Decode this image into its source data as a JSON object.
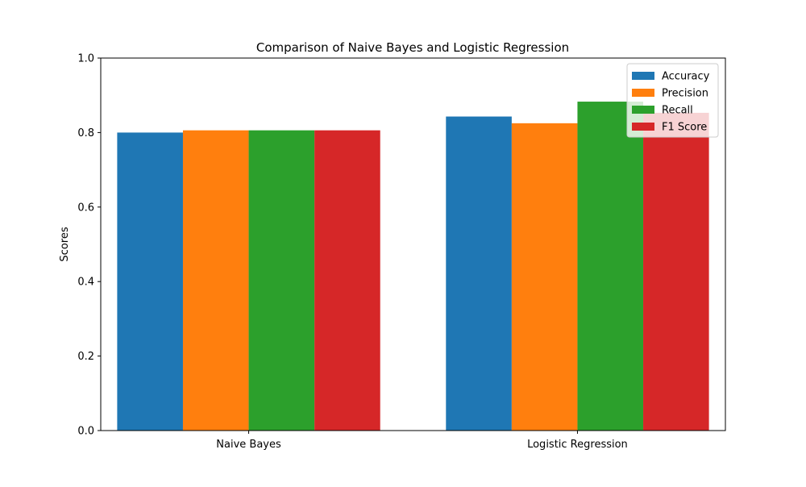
{
  "chart_data": {
    "type": "bar",
    "title": "Comparison of Naive Bayes and Logistic Regression",
    "xlabel": "",
    "ylabel": "Scores",
    "categories": [
      "Naive Bayes",
      "Logistic Regression"
    ],
    "series": [
      {
        "name": "Accuracy",
        "color": "#1f77b4",
        "values": [
          0.8,
          0.843
        ]
      },
      {
        "name": "Precision",
        "color": "#ff7f0e",
        "values": [
          0.806,
          0.825
        ]
      },
      {
        "name": "Recall",
        "color": "#2ca02c",
        "values": [
          0.806,
          0.883
        ]
      },
      {
        "name": "F1 Score",
        "color": "#d62728",
        "values": [
          0.806,
          0.853
        ]
      }
    ],
    "ylim": [
      0,
      1.0
    ],
    "yticks": [
      "0.0",
      "0.2",
      "0.4",
      "0.6",
      "0.8",
      "1.0"
    ],
    "grid": false,
    "legend_position": "top-right"
  }
}
